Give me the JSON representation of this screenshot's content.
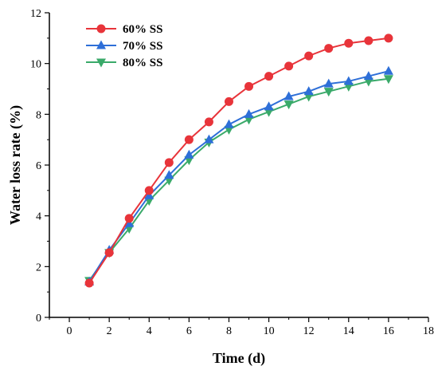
{
  "chart_data": {
    "type": "line",
    "title": "",
    "xlabel": "Time (d)",
    "ylabel": "Water loss rate (%)",
    "xlim": [
      -1,
      18
    ],
    "ylim": [
      0,
      12
    ],
    "xticks": [
      0,
      2,
      4,
      6,
      8,
      10,
      12,
      14,
      16,
      18
    ],
    "yticks": [
      0,
      2,
      4,
      6,
      8,
      10,
      12
    ],
    "grid": false,
    "legend_position": "top-left",
    "x": [
      1,
      2,
      3,
      4,
      5,
      6,
      7,
      8,
      9,
      10,
      11,
      12,
      13,
      14,
      15,
      16
    ],
    "series": [
      {
        "name": "60% SS",
        "color": "#e8343a",
        "marker": "circle",
        "values": [
          1.35,
          2.55,
          3.9,
          5.0,
          6.1,
          7.0,
          7.7,
          8.5,
          9.1,
          9.5,
          9.9,
          10.3,
          10.6,
          10.8,
          10.9,
          11.0
        ]
      },
      {
        "name": "70% SS",
        "color": "#2e6fd8",
        "marker": "triangle-up",
        "values": [
          1.4,
          2.65,
          3.7,
          4.8,
          5.6,
          6.4,
          7.0,
          7.6,
          8.0,
          8.3,
          8.7,
          8.9,
          9.2,
          9.3,
          9.5,
          9.7
        ]
      },
      {
        "name": "80% SS",
        "color": "#3aaa6a",
        "marker": "triangle-down",
        "values": [
          1.45,
          2.55,
          3.5,
          4.6,
          5.4,
          6.2,
          6.9,
          7.4,
          7.8,
          8.1,
          8.4,
          8.7,
          8.9,
          9.1,
          9.3,
          9.4
        ]
      }
    ]
  }
}
